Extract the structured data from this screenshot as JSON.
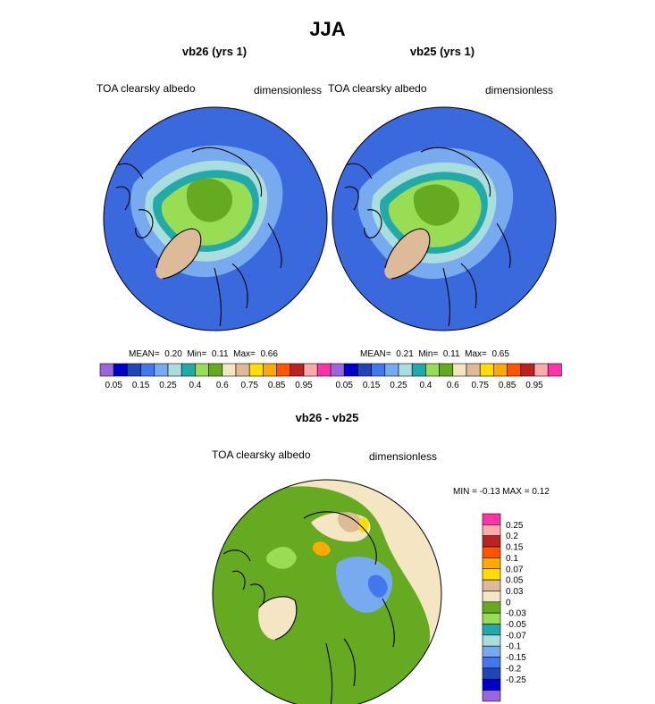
{
  "page": {
    "title": "JJA"
  },
  "colors": {
    "levels": [
      "#9966dd",
      "#0000cc",
      "#2244bb",
      "#4477ee",
      "#77aaee",
      "#aadddd",
      "#22aaaa",
      "#99dd55",
      "#66aa22",
      "#f5e6c3",
      "#ddbb99",
      "#ffdd00",
      "#ffaa00",
      "#ff5500",
      "#bb2222",
      "#ffaaaa",
      "#ff33aa"
    ],
    "diff_levels": [
      "#9966dd",
      "#0000cc",
      "#2244bb",
      "#4477ee",
      "#77aaee",
      "#aadddd",
      "#22aaaa",
      "#99dd55",
      "#66aa22",
      "#f5e6c3",
      "#ddbb99",
      "#ffdd00",
      "#ffaa00",
      "#ff5500",
      "#bb2222",
      "#ffaaaa",
      "#ff33aa"
    ]
  },
  "chart_data": [
    {
      "type": "heatmap",
      "projection": "polar-stereographic",
      "title": "vb26 (yrs 1)",
      "left_label": "TOA clearsky albedo",
      "right_label": "dimensionless",
      "stats": {
        "mean_label": "MEAN=",
        "mean": "0.20",
        "min_label": "Min=",
        "min": "0.11",
        "max_label": "Max=",
        "max": "0.66"
      },
      "colorbar_ticks": [
        "0.05",
        "0.15",
        "0.25",
        "0.4",
        "0.6",
        "0.75",
        "0.85",
        "0.95"
      ]
    },
    {
      "type": "heatmap",
      "projection": "polar-stereographic",
      "title": "vb25 (yrs 1)",
      "left_label": "TOA clearsky albedo",
      "right_label": "dimensionless",
      "stats": {
        "mean_label": "MEAN=",
        "mean": "0.21",
        "min_label": "Min=",
        "min": "0.11",
        "max_label": "Max=",
        "max": "0.65"
      },
      "colorbar_ticks": [
        "0.05",
        "0.15",
        "0.25",
        "0.4",
        "0.6",
        "0.75",
        "0.85",
        "0.95"
      ]
    },
    {
      "type": "heatmap",
      "projection": "polar-stereographic",
      "title": "vb26 - vb25",
      "left_label": "TOA clearsky albedo",
      "right_label": "dimensionless",
      "stats": {
        "text": "MIN = -0.13 MAX =  0.12"
      },
      "colorbar_ticks": [
        "0.25",
        "0.2",
        "0.15",
        "0.1",
        "0.07",
        "0.05",
        "0.03",
        "0",
        "-0.03",
        "-0.05",
        "-0.07",
        "-0.1",
        "-0.15",
        "-0.2",
        "-0.25"
      ]
    }
  ]
}
